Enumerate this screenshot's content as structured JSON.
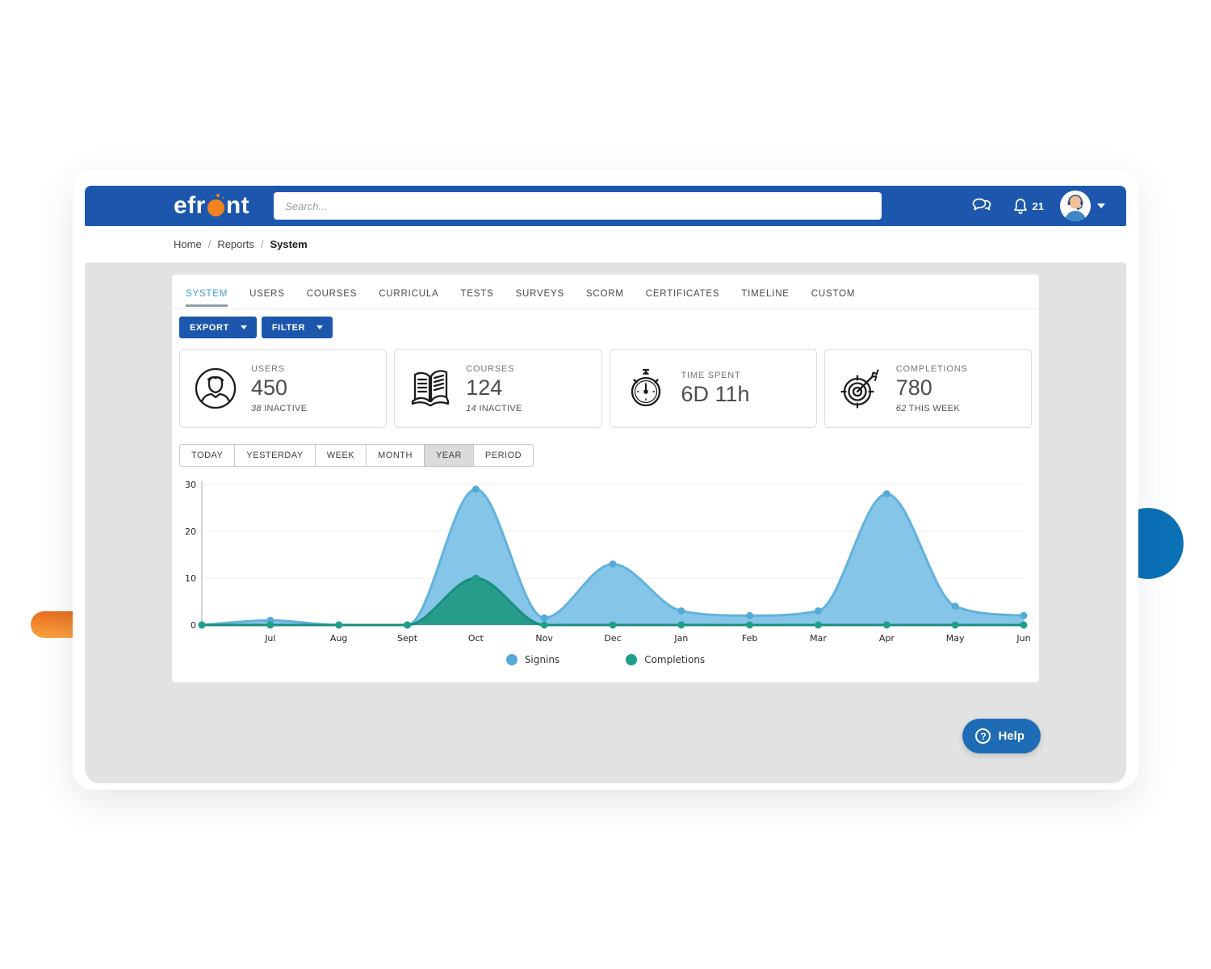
{
  "header": {
    "logo_pre": "efr",
    "logo_post": "nt",
    "search_placeholder": "Search...",
    "notification_count": "21"
  },
  "breadcrumb": {
    "items": [
      "Home",
      "Reports",
      "System"
    ]
  },
  "tabs": {
    "active_index": 0,
    "items": [
      "SYSTEM",
      "USERS",
      "COURSES",
      "CURRICULA",
      "TESTS",
      "SURVEYS",
      "SCORM",
      "CERTIFICATES",
      "TIMELINE",
      "CUSTOM"
    ]
  },
  "toolbar": {
    "export_label": "EXPORT",
    "filter_label": "FILTER"
  },
  "stats": [
    {
      "icon": "user-icon",
      "label": "USERS",
      "value": "450",
      "sub_value": "38",
      "sub_label": "INACTIVE"
    },
    {
      "icon": "book-icon",
      "label": "COURSES",
      "value": "124",
      "sub_value": "14",
      "sub_label": "INACTIVE"
    },
    {
      "icon": "stopwatch-icon",
      "label": "TIME SPENT",
      "value": "6D 11h",
      "sub_value": "",
      "sub_label": ""
    },
    {
      "icon": "target-icon",
      "label": "COMPLETIONS",
      "value": "780",
      "sub_value": "62",
      "sub_label": "THIS WEEK"
    }
  ],
  "range_buttons": {
    "selected": "YEAR",
    "options": [
      "TODAY",
      "YESTERDAY",
      "WEEK",
      "MONTH",
      "YEAR",
      "PERIOD"
    ]
  },
  "chart_data": {
    "type": "area",
    "x": [
      "",
      "Jul",
      "Aug",
      "Sept",
      "Oct",
      "Nov",
      "Dec",
      "Jan",
      "Feb",
      "Mar",
      "Apr",
      "May",
      "Jun"
    ],
    "series": [
      {
        "name": "Signins",
        "fill": "#85c6e8",
        "line": "#62b2dc",
        "marker": "#55abd8",
        "values": [
          0,
          1,
          0,
          0,
          29,
          1.5,
          13,
          3,
          2,
          3,
          28,
          4,
          2
        ]
      },
      {
        "name": "Completions",
        "fill": "#279c8b",
        "line": "#1b8d7c",
        "marker": "#1f9e8b",
        "values": [
          0,
          0,
          0,
          0,
          10,
          0,
          0,
          0,
          0,
          0,
          0,
          0,
          0
        ]
      }
    ],
    "ylim": [
      0,
      30
    ],
    "yticks": [
      0,
      10,
      20,
      30
    ],
    "grid": "horizontal",
    "legend_position": "bottom"
  },
  "help": {
    "label": "Help"
  },
  "colors": {
    "brand_blue": "#1d57ad",
    "logo_orange": "#f58220",
    "tab_active_blue": "#3da0da",
    "help_blue": "#1e6cb5",
    "decor_blue": "#0b70b6",
    "decor_orange_top": "#e96d1d",
    "decor_orange_bottom": "#f9a23f",
    "content_gray": "#e2e2e2"
  }
}
